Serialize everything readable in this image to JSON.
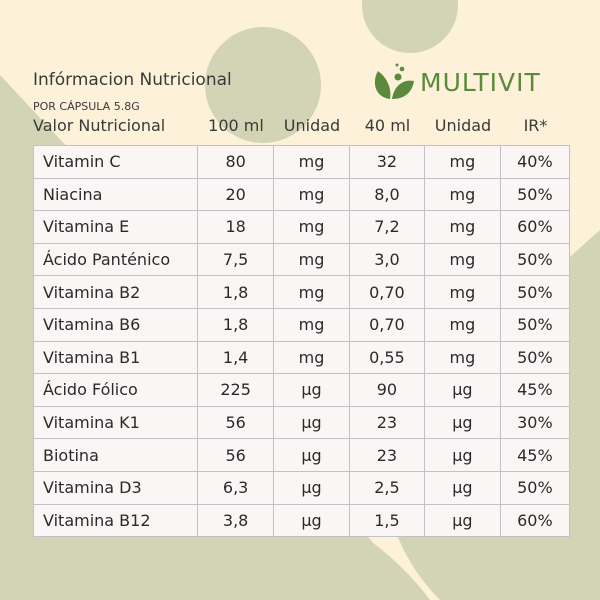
{
  "colors": {
    "background": "#fdf1da",
    "shape": "#d3d4b6",
    "brand": "#5a8a3a"
  },
  "header": {
    "title": "Infórmacion Nutricional",
    "subtitle": "POR CÁPSULA 5.8G",
    "brand": "MULTIVIT",
    "brand_icon": "leaf-bubbles-logo"
  },
  "columns": [
    "Valor Nutricional",
    "100 ml",
    "Unidad",
    "40 ml",
    "Unidad",
    "IR*"
  ],
  "rows": [
    [
      "Vitamin C",
      "80",
      "mg",
      "32",
      "mg",
      "40%"
    ],
    [
      "Niacina",
      "20",
      "mg",
      "8,0",
      "mg",
      "50%"
    ],
    [
      "Vitamina E",
      "18",
      "mg",
      "7,2",
      "mg",
      "60%"
    ],
    [
      "Ácido Panténico",
      "7,5",
      "mg",
      "3,0",
      "mg",
      "50%"
    ],
    [
      "Vitamina B2",
      "1,8",
      "mg",
      "0,70",
      "mg",
      "50%"
    ],
    [
      "Vitamina B6",
      "1,8",
      "mg",
      "0,70",
      "mg",
      "50%"
    ],
    [
      "Vitamina B1",
      "1,4",
      "mg",
      "0,55",
      "mg",
      "50%"
    ],
    [
      "Ácido Fólico",
      "225",
      "µg",
      "90",
      "µg",
      "45%"
    ],
    [
      "Vitamina K1",
      "56",
      "µg",
      "23",
      "µg",
      "30%"
    ],
    [
      "Biotina",
      "56",
      "µg",
      "23",
      "µg",
      "45%"
    ],
    [
      "Vitamina D3",
      "6,3",
      "µg",
      "2,5",
      "µg",
      "50%"
    ],
    [
      "Vitamina B12",
      "3,8",
      "µg",
      "1,5",
      "µg",
      "60%"
    ]
  ]
}
